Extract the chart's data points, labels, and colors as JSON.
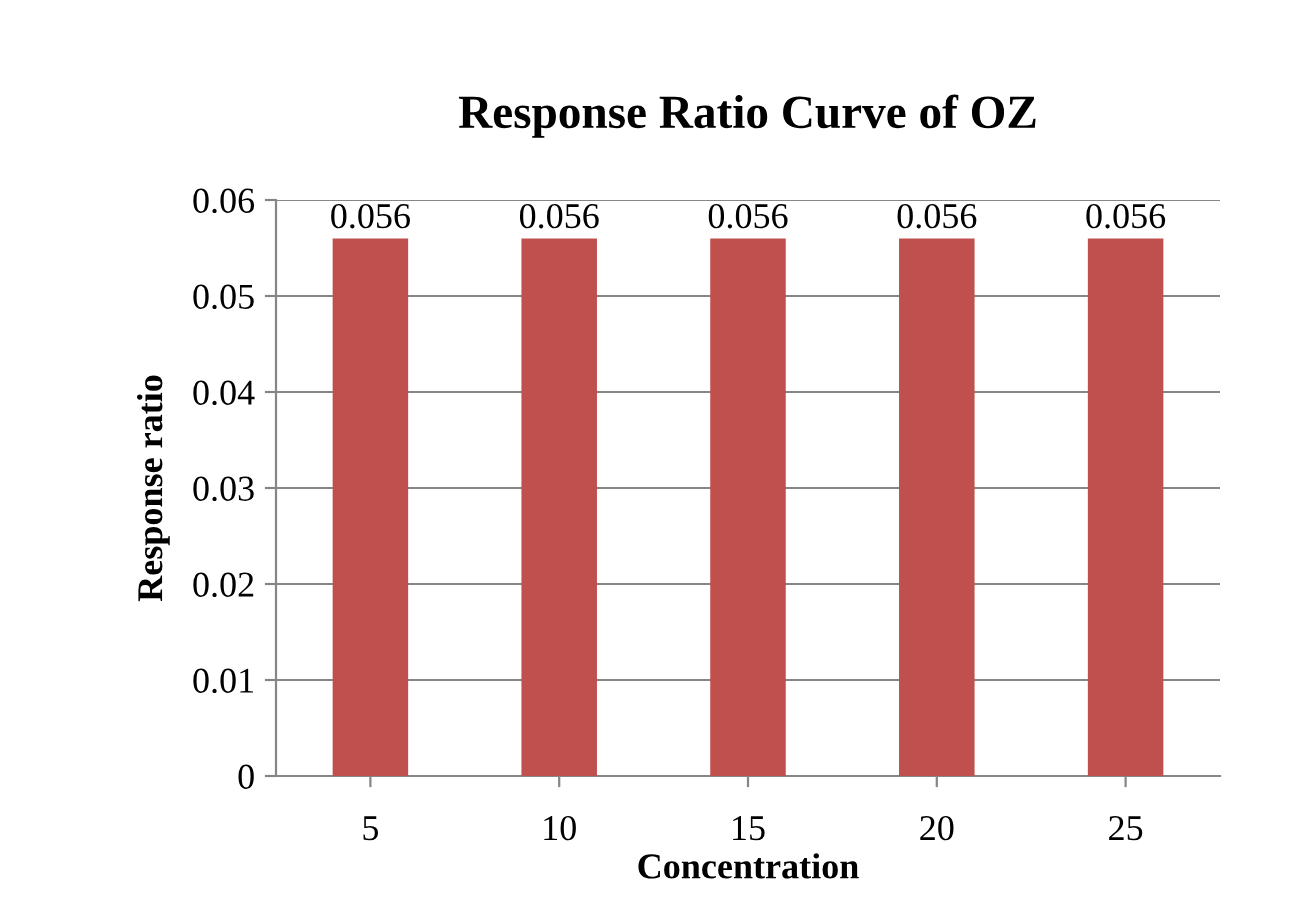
{
  "chart_data": {
    "type": "bar",
    "title": "Response Ratio Curve of OZ",
    "xlabel": "Concentration",
    "ylabel": "Response ratio",
    "categories": [
      "5",
      "10",
      "15",
      "20",
      "25"
    ],
    "values": [
      0.056,
      0.056,
      0.056,
      0.056,
      0.056
    ],
    "color": "#c0504d",
    "ylim": [
      0,
      0.06
    ],
    "yticks": [
      0,
      0.01,
      0.02,
      0.03,
      0.04,
      0.05,
      0.06
    ],
    "grid": "y",
    "data_labels": true,
    "legend": false
  }
}
